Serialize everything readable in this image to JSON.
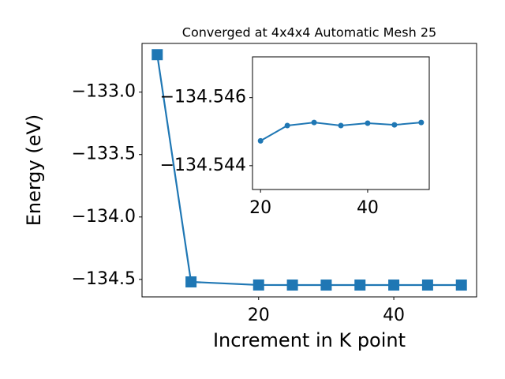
{
  "chart_data": [
    {
      "type": "line",
      "title": "Converged at 4x4x4 Automatic Mesh 25",
      "x_label": "Increment in K point",
      "y_label": "Energy (eV)",
      "x": [
        5,
        10,
        20,
        25,
        30,
        35,
        40,
        45,
        50
      ],
      "series": [
        {
          "color": "#1f77b4",
          "marker": "square",
          "values": [
            -132.7,
            -134.52,
            -134.54473,
            -134.54518,
            -134.54527,
            -134.54518,
            -134.54525,
            -134.5452,
            -134.54527
          ]
        }
      ],
      "xlim": [
        2.75,
        52.25
      ],
      "xticks": [
        20,
        40
      ],
      "ylim": [
        -134.64,
        -132.61
      ],
      "yticks": [
        {
          "value": -134.5,
          "label": "−134.5"
        },
        {
          "value": -134.0,
          "label": "−134.0"
        },
        {
          "value": -133.5,
          "label": "−133.5"
        },
        {
          "value": -133.0,
          "label": "−133.0"
        }
      ]
    },
    {
      "type": "line",
      "x": [
        20,
        25,
        30,
        35,
        40,
        45,
        50
      ],
      "series": [
        {
          "color": "#1f77b4",
          "marker": "circle",
          "values": [
            -134.54473,
            -134.54518,
            -134.54527,
            -134.54518,
            -134.54525,
            -134.5452,
            -134.54527
          ]
        }
      ],
      "xlim": [
        18.5,
        51.5
      ],
      "xticks": [
        20,
        40
      ],
      "ylim": [
        -134.5433,
        -134.5472
      ],
      "yticks": [
        {
          "value": -134.544,
          "label": "−134.544"
        },
        {
          "value": -134.546,
          "label": "−134.546"
        }
      ]
    }
  ]
}
